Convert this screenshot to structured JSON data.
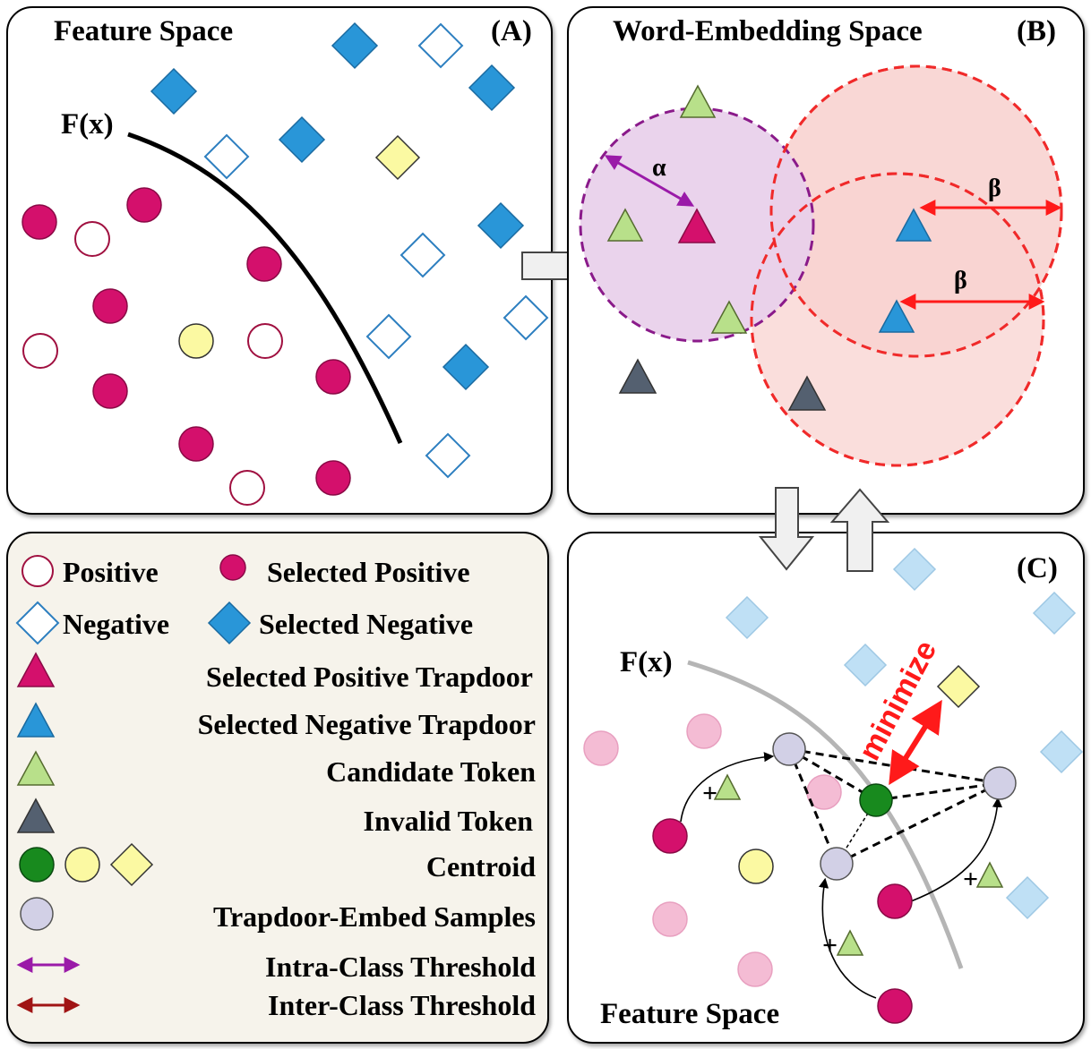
{
  "panel_a": {
    "title": "Feature Space",
    "tag": "(A)",
    "curve_label": "F(x)"
  },
  "panel_b": {
    "title": "Word-Embedding Space",
    "tag": "(B)",
    "alpha": "α",
    "beta": "β"
  },
  "panel_c": {
    "tag": "(C)",
    "curve_label": "F(x)",
    "minimize": "minimize",
    "bottom_title": "Feature Space",
    "plus": "+"
  },
  "legend": {
    "positive": "Positive",
    "selected_positive": "Selected Positive",
    "negative": "Negative",
    "selected_negative": "Selected Negative",
    "selected_positive_trapdoor": "Selected Positive Trapdoor",
    "selected_negative_trapdoor": "Selected Negative Trapdoor",
    "candidate_token": "Candidate Token",
    "invalid_token": "Invalid Token",
    "centroid": "Centroid",
    "trapdoor_embed_samples": "Trapdoor-Embed Samples",
    "intra_class_threshold": "Intra-Class Threshold",
    "inter_class_threshold": "Inter-Class Threshold"
  },
  "colors": {
    "selected_positive": "#d4106c",
    "selected_negative": "#2996d8",
    "positive_outline": "#a01040",
    "negative_outline": "#2d7fc0",
    "candidate": "#b8e08a",
    "invalid": "#546070",
    "centroid_green": "#188a1e",
    "centroid_yellow": "#fbf9a2",
    "embed_sample": "#d2d0e6",
    "alpha_region": "#e8cfea",
    "beta_region": "#f8d3d0",
    "alpha_arrow": "#9a1aa8",
    "beta_arrow": "#ff1a1a",
    "legend_bg": "#f6f3eb"
  }
}
